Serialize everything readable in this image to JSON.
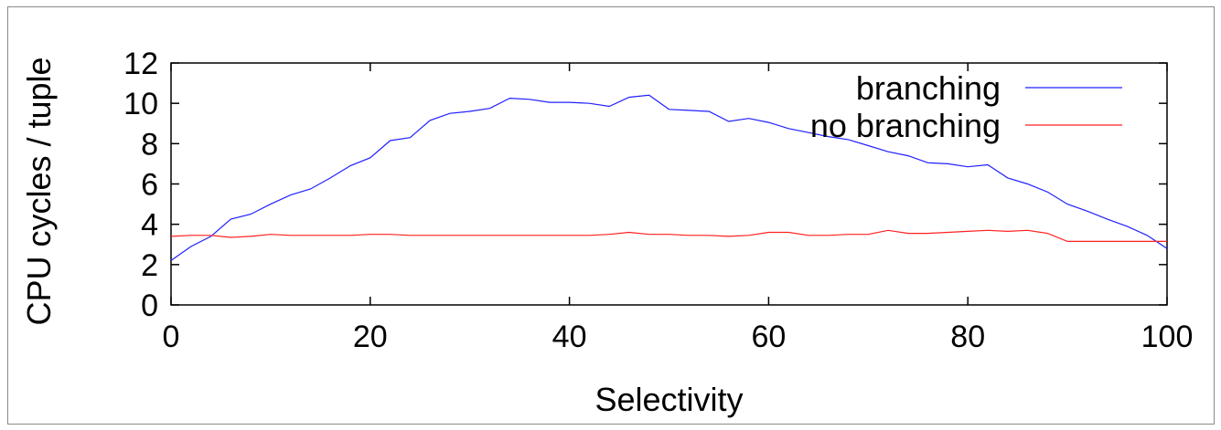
{
  "chart_data": {
    "type": "line",
    "title": "",
    "xlabel": "Selectivity",
    "ylabel": "CPU cycles / tuple",
    "xlim": [
      0,
      100
    ],
    "ylim": [
      0,
      12
    ],
    "xticks": [
      0,
      20,
      40,
      60,
      80,
      100
    ],
    "yticks": [
      0,
      2,
      4,
      6,
      8,
      10,
      12
    ],
    "grid": false,
    "legend_position": "top-right",
    "x": [
      0,
      2,
      4,
      6,
      8,
      10,
      12,
      14,
      16,
      18,
      20,
      22,
      24,
      26,
      28,
      30,
      32,
      34,
      36,
      38,
      40,
      42,
      44,
      46,
      48,
      50,
      52,
      54,
      56,
      58,
      60,
      62,
      64,
      66,
      68,
      70,
      72,
      74,
      76,
      78,
      80,
      82,
      84,
      86,
      88,
      90,
      92,
      94,
      96,
      98,
      100
    ],
    "series": [
      {
        "name": "branching",
        "color": "#2020ff",
        "values": [
          2.2,
          2.9,
          3.4,
          4.25,
          4.5,
          5.0,
          5.45,
          5.75,
          6.3,
          6.9,
          7.3,
          8.15,
          8.3,
          9.15,
          9.5,
          9.6,
          9.75,
          10.25,
          10.2,
          10.05,
          10.05,
          10.0,
          9.85,
          10.3,
          10.4,
          9.7,
          9.65,
          9.6,
          9.1,
          9.25,
          9.05,
          8.75,
          8.55,
          8.35,
          8.2,
          7.9,
          7.6,
          7.4,
          7.05,
          7.0,
          6.85,
          6.95,
          6.3,
          6.0,
          5.6,
          5.0,
          4.65,
          4.25,
          3.9,
          3.45,
          2.8
        ]
      },
      {
        "name": "no branching",
        "color": "#ff2020",
        "values": [
          3.4,
          3.45,
          3.45,
          3.35,
          3.4,
          3.5,
          3.45,
          3.45,
          3.45,
          3.45,
          3.5,
          3.5,
          3.45,
          3.45,
          3.45,
          3.45,
          3.45,
          3.45,
          3.45,
          3.45,
          3.45,
          3.45,
          3.5,
          3.6,
          3.5,
          3.5,
          3.45,
          3.45,
          3.4,
          3.45,
          3.6,
          3.6,
          3.45,
          3.45,
          3.5,
          3.5,
          3.7,
          3.55,
          3.55,
          3.6,
          3.65,
          3.7,
          3.65,
          3.7,
          3.55,
          3.15,
          3.15,
          3.15,
          3.15,
          3.15,
          3.15
        ]
      }
    ]
  }
}
